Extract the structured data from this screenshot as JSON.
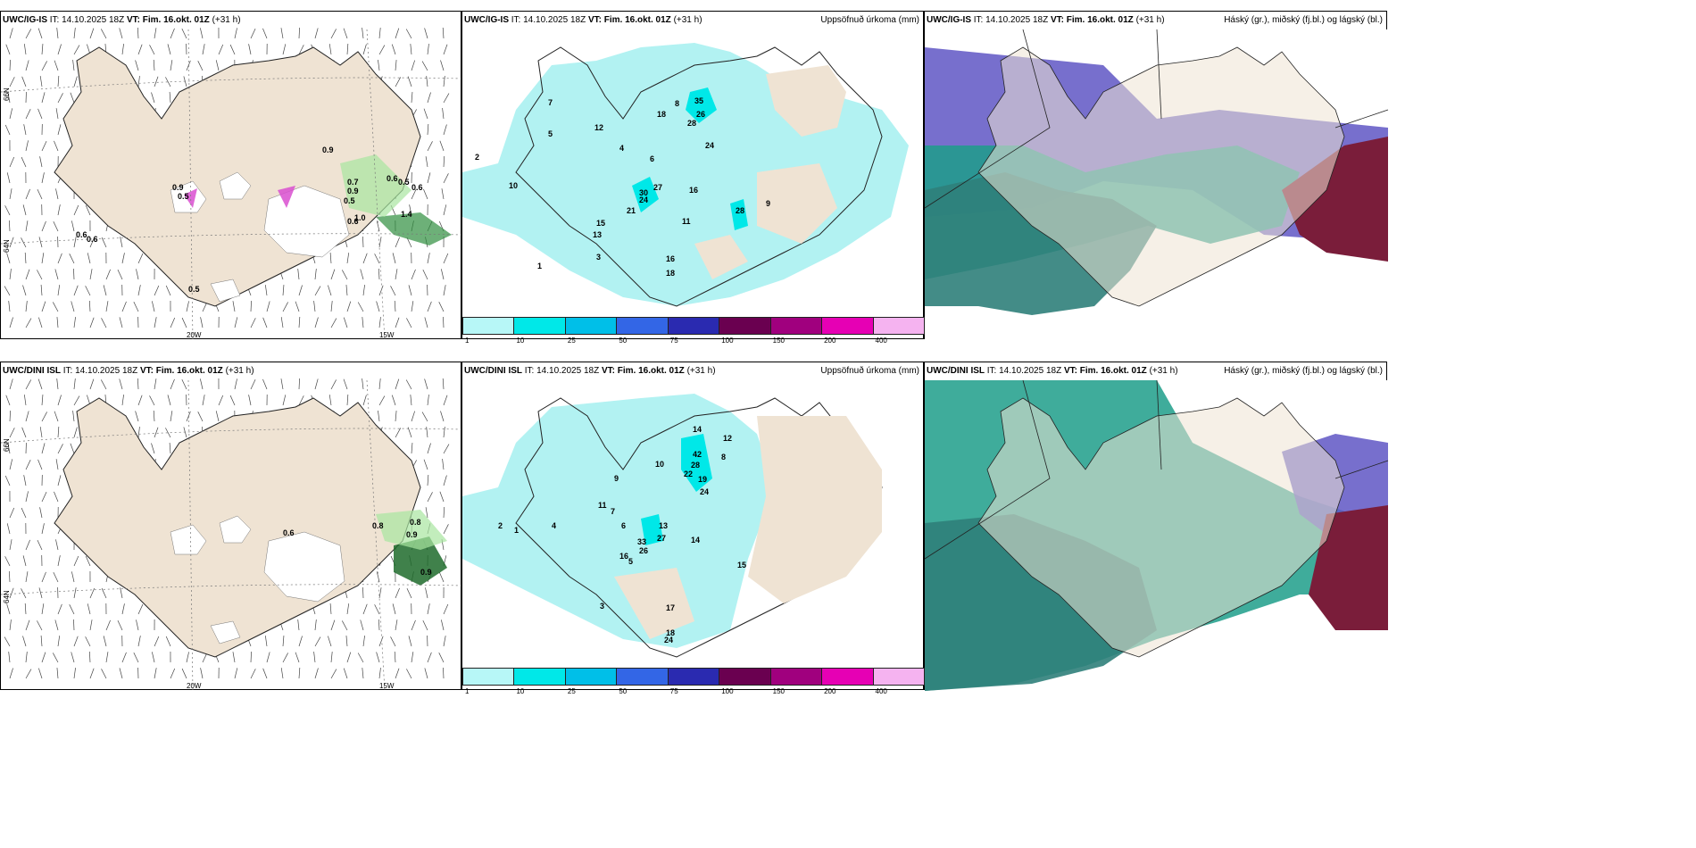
{
  "panels": {
    "top_left": {
      "header_model": "UWC/IG-IS",
      "header_it": "IT: 14.10.2025 18Z",
      "header_vt": "VT: Fim. 16.okt. 01Z",
      "header_lead": "(+31 h)"
    },
    "top_mid": {
      "header_model": "UWC/IG-IS",
      "header_it": "IT: 14.10.2025 18Z",
      "header_vt": "VT: Fim. 16.okt. 01Z",
      "header_lead": "(+31 h)",
      "right_title": "Uppsöfnuð úrkoma (mm)"
    },
    "top_right": {
      "header_model": "UWC/IG-IS",
      "header_it": "IT: 14.10.2025 18Z",
      "header_vt": "VT: Fim. 16.okt. 01Z",
      "header_lead": "(+31 h)",
      "right_title": "Háský (gr.), miðský (fj.bl.) og lágský (bl.)"
    },
    "bot_left": {
      "header_model": "UWC/DINI ISL",
      "header_it": "IT: 14.10.2025 18Z",
      "header_vt": "VT: Fim. 16.okt. 01Z",
      "header_lead": "(+31 h)"
    },
    "bot_mid": {
      "header_model": "UWC/DINI ISL",
      "header_it": "IT: 14.10.2025 18Z",
      "header_vt": "VT: Fim. 16.okt. 01Z",
      "header_lead": "(+31 h)",
      "right_title": "Uppsöfnuð úrkoma (mm)"
    },
    "bot_right": {
      "header_model": "UWC/DINI ISL",
      "header_it": "IT: 14.10.2025 18Z",
      "header_vt": "VT: Fim. 16.okt. 01Z",
      "header_lead": "(+31 h)",
      "right_title": "Háský (gr.), miðský (fj.bl.) og lágský (bl.)"
    }
  },
  "axis_labels": {
    "lon_20w": "20W",
    "lon_15w": "15W",
    "lat_66n": "66N",
    "lat_64n": "64N"
  },
  "colorbar": {
    "labels": [
      "1",
      "10",
      "25",
      "50",
      "75",
      "100",
      "150",
      "200",
      "400"
    ],
    "colors": [
      "#b7f7f7",
      "#00e8e8",
      "#00bfe8",
      "#3366e6",
      "#2a2ab0",
      "#6a0050",
      "#a0007e",
      "#e600b4",
      "#f5b3f0"
    ]
  },
  "top_left_values": [
    "0.9",
    "0.9",
    "0.5",
    "0.7",
    "0.9",
    "0.6",
    "0.5",
    "0.6",
    "0.5",
    "0.6",
    "0.6",
    "0.5",
    "1.4",
    "1.0",
    "0.6"
  ],
  "bot_left_values": [
    "0.6",
    "0.8",
    "0.8",
    "0.9",
    "0.9"
  ],
  "top_mid_values": [
    "35",
    "26",
    "28",
    "18",
    "24",
    "27",
    "30",
    "24",
    "21",
    "16",
    "28",
    "10",
    "12",
    "15",
    "13",
    "16",
    "18",
    "11",
    "2",
    "7",
    "5",
    "4",
    "6",
    "8",
    "9",
    "3",
    "1"
  ],
  "bot_mid_values": [
    "42",
    "28",
    "22",
    "19",
    "24",
    "14",
    "12",
    "13",
    "27",
    "26",
    "33",
    "14",
    "15",
    "16",
    "17",
    "18",
    "24",
    "10",
    "9",
    "7",
    "6",
    "5",
    "4",
    "3",
    "2",
    "1",
    "8",
    "11"
  ],
  "colors": {
    "land": "#efe3d3",
    "precip": "#b2f2f2",
    "cloud_high": "#5f56c4",
    "cloud_mid": "#1d9e8a",
    "cloud_low": "#2f7f7a",
    "cloud_red": "#7a1d3a"
  }
}
